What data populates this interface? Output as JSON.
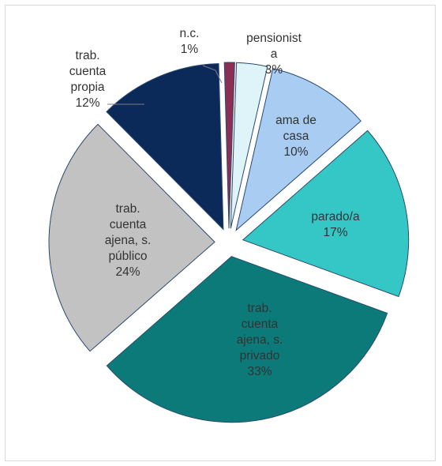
{
  "chart_data": {
    "type": "pie",
    "title": "",
    "legend": "none",
    "slices": [
      {
        "label_lines": [
          "pensionist",
          "a",
          "3%"
        ],
        "value": 3,
        "color": "#dff4f8"
      },
      {
        "label_lines": [
          "ama de",
          "casa",
          "10%"
        ],
        "value": 10,
        "color": "#a8ccf2"
      },
      {
        "label_lines": [
          "parado/a",
          "17%"
        ],
        "value": 17,
        "color": "#35c6c6"
      },
      {
        "label_lines": [
          "trab.",
          "cuenta",
          "ajena, s.",
          "privado",
          "33%"
        ],
        "value": 33,
        "color": "#0b7a78"
      },
      {
        "label_lines": [
          "trab.",
          "cuenta",
          "ajena, s.",
          "público",
          "24%"
        ],
        "value": 24,
        "color": "#c2c2c2"
      },
      {
        "label_lines": [
          "trab.",
          "cuenta",
          "propia",
          "12%"
        ],
        "value": 12,
        "color": "#0b2a5a"
      },
      {
        "label_lines": [
          "n.c.",
          "1%"
        ],
        "value": 1,
        "color": "#8c2f55"
      }
    ]
  }
}
